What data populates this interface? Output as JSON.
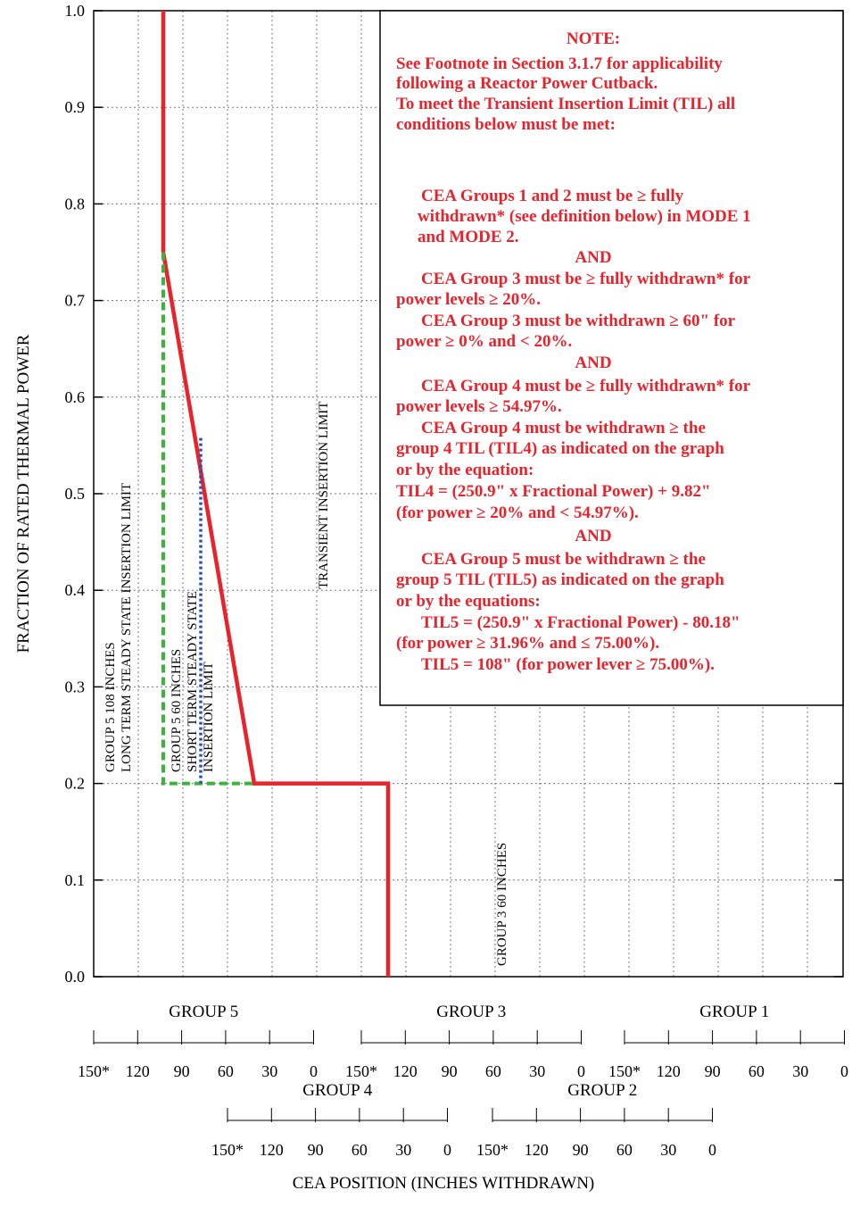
{
  "chart_data": {
    "type": "line",
    "xlabel": "CEA POSITION (INCHES WITHDRAWN)",
    "ylabel": "FRACTION OF RATED THERMAL POWER",
    "ylim": [
      0,
      1.0
    ],
    "y_ticks": [
      "0.0",
      "0.1",
      "0.2",
      "0.3",
      "0.4",
      "0.5",
      "0.6",
      "0.7",
      "0.8",
      "0.9",
      "1.0"
    ],
    "grid": true,
    "series": [
      {
        "color": "#e8232b",
        "points": [
          [
            870,
            0.0
          ],
          [
            870,
            0.2
          ],
          [
            720,
            0.2
          ],
          [
            618,
            0.75
          ],
          [
            618,
            1.0
          ]
        ]
      },
      {
        "color": "#3cb43c",
        "points": [
          [
            618,
            0.75
          ],
          [
            618,
            0.2
          ],
          [
            720,
            0.2
          ]
        ]
      },
      {
        "color": "#2b4fb5",
        "points": [
          [
            660,
            0.2
          ],
          [
            660,
            0.56
          ]
        ]
      }
    ],
    "annotations": [
      {
        "lines": [
          "GROUP 5 108 INCHES",
          "LONG TERM STEADY STATE INSERTION LIMIT"
        ]
      },
      {
        "lines": [
          "GROUP 5 60 INCHES",
          "SHORT TERM STEADY STATE",
          "INSERTION LIMIT"
        ]
      },
      {
        "lines": [
          "TRANSIENT INSERTION LIMIT"
        ]
      },
      {
        "lines": [
          "GROUP 3 60 INCHES"
        ]
      }
    ],
    "x_axis_groups": [
      {
        "name": "GROUP 5",
        "ticks": [
          "150*",
          "120",
          "90",
          "60",
          "30",
          "0"
        ]
      },
      {
        "name": "GROUP 4",
        "ticks": [
          "150*",
          "120",
          "90",
          "60",
          "30",
          "0"
        ]
      },
      {
        "name": "GROUP 3",
        "ticks": [
          "150*",
          "120",
          "90",
          "60",
          "30",
          "0"
        ]
      },
      {
        "name": "GROUP 2",
        "ticks": [
          "150*",
          "120",
          "90",
          "60",
          "30",
          "0"
        ]
      },
      {
        "name": "GROUP 1",
        "ticks": [
          "150*",
          "120",
          "90",
          "60",
          "30",
          "0"
        ]
      }
    ],
    "note_lines": [
      "NOTE:",
      "See Footnote in Section 3.1.7 for applicability",
      "following a Reactor Power Cutback.",
      "To meet the Transient Insertion Limit (TIL) all",
      "conditions below must be met:",
      "CEA Groups 1 and 2 must be ≥ fully",
      "withdrawn* (see definition below) in MODE 1",
      "and MODE 2.",
      "AND",
      "CEA Group 3 must be ≥ fully withdrawn* for",
      "power levels ≥ 20%.",
      "CEA Group 3 must be withdrawn ≥ 60\" for",
      "power ≥ 0% and < 20%.",
      "AND",
      "CEA Group 4 must be ≥ fully withdrawn* for",
      "power levels ≥ 54.97%.",
      "CEA Group 4 must be withdrawn ≥ the",
      "group 4 TIL (TIL4) as indicated on the graph",
      "or by the equation:",
      "TIL4 = (250.9\" x Fractional Power) + 9.82\"",
      "(for power ≥ 20% and < 54.97%).",
      "AND",
      "CEA Group 5 must be withdrawn ≥ the",
      "group 5 TIL (TIL5) as indicated on the graph",
      "or by the equations:",
      "TIL5 = (250.9\" x Fractional Power) - 80.18\"",
      "(for power ≥ 31.96% and ≤ 75.00%).",
      "TIL5 = 108\" (for power lever ≥ 75.00%)."
    ]
  }
}
